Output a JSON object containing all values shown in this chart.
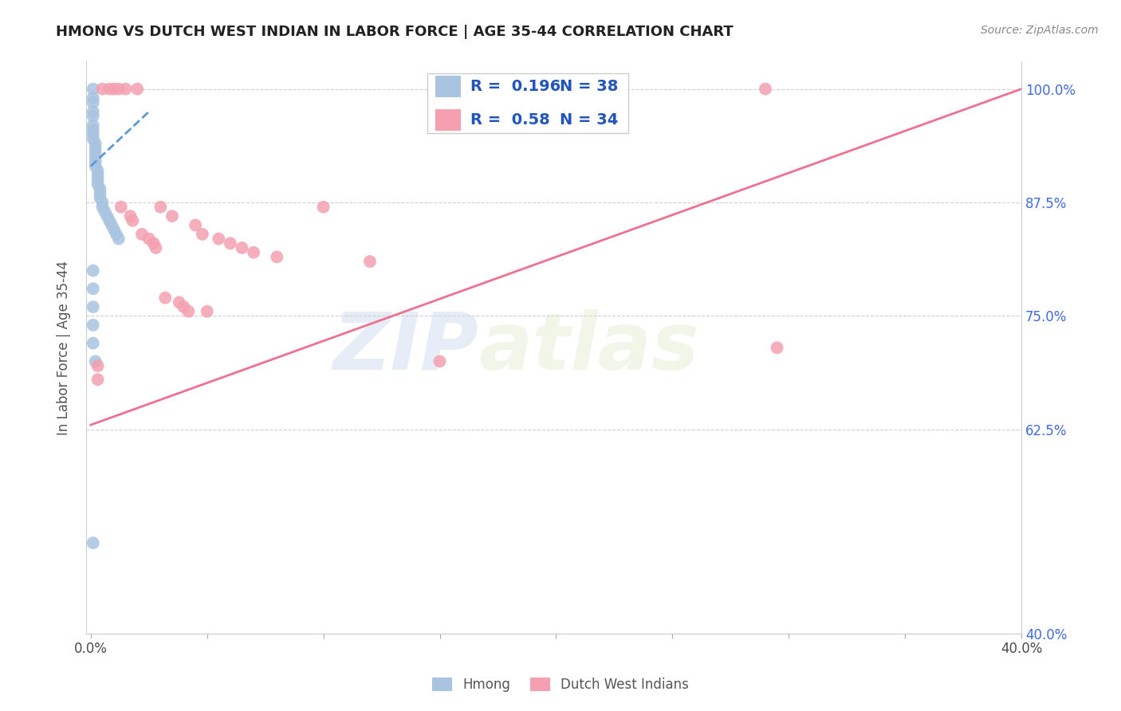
{
  "title": "HMONG VS DUTCH WEST INDIAN IN LABOR FORCE | AGE 35-44 CORRELATION CHART",
  "source": "Source: ZipAtlas.com",
  "ylabel": "In Labor Force | Age 35-44",
  "xlim": [
    -0.002,
    0.4
  ],
  "ylim": [
    0.4,
    1.03
  ],
  "xtick_positions": [
    0.0,
    0.05,
    0.1,
    0.15,
    0.2,
    0.25,
    0.3,
    0.35,
    0.4
  ],
  "xticklabels": [
    "0.0%",
    "",
    "",
    "",
    "",
    "",
    "",
    "",
    "40.0%"
  ],
  "ytick_positions": [
    0.4,
    0.625,
    0.75,
    0.875,
    1.0
  ],
  "yticklabels_right": [
    "40.0%",
    "62.5%",
    "75.0%",
    "87.5%",
    "100.0%"
  ],
  "hmong_R": 0.196,
  "hmong_N": 38,
  "dutch_R": 0.58,
  "dutch_N": 34,
  "hmong_color": "#a8c4e0",
  "dutch_color": "#f4a0b0",
  "hmong_line_color": "#5b9bd5",
  "dutch_line_color": "#f07090",
  "background_color": "#ffffff",
  "watermark_zip": "ZIP",
  "watermark_atlas": "atlas",
  "hmong_x": [
    0.001,
    0.001,
    0.001,
    0.001,
    0.001,
    0.001,
    0.001,
    0.001,
    0.001,
    0.002,
    0.002,
    0.002,
    0.002,
    0.002,
    0.002,
    0.003,
    0.003,
    0.003,
    0.003,
    0.004,
    0.004,
    0.004,
    0.005,
    0.005,
    0.006,
    0.007,
    0.008,
    0.009,
    0.01,
    0.011,
    0.012,
    0.001,
    0.001,
    0.001,
    0.001,
    0.001,
    0.002,
    0.001
  ],
  "hmong_y": [
    1.0,
    0.99,
    0.985,
    0.975,
    0.97,
    0.96,
    0.955,
    0.95,
    0.945,
    0.94,
    0.935,
    0.93,
    0.925,
    0.92,
    0.915,
    0.91,
    0.905,
    0.9,
    0.895,
    0.89,
    0.885,
    0.88,
    0.875,
    0.87,
    0.865,
    0.86,
    0.855,
    0.85,
    0.845,
    0.84,
    0.835,
    0.8,
    0.78,
    0.76,
    0.74,
    0.72,
    0.7,
    0.5
  ],
  "dutch_x": [
    0.003,
    0.003,
    0.005,
    0.008,
    0.01,
    0.012,
    0.013,
    0.015,
    0.017,
    0.018,
    0.02,
    0.022,
    0.025,
    0.027,
    0.028,
    0.03,
    0.032,
    0.035,
    0.038,
    0.04,
    0.042,
    0.045,
    0.048,
    0.05,
    0.055,
    0.06,
    0.065,
    0.07,
    0.08,
    0.1,
    0.12,
    0.15,
    0.29,
    0.295
  ],
  "dutch_y": [
    0.695,
    0.68,
    1.0,
    1.0,
    1.0,
    1.0,
    0.87,
    1.0,
    0.86,
    0.855,
    1.0,
    0.84,
    0.835,
    0.83,
    0.825,
    0.87,
    0.77,
    0.86,
    0.765,
    0.76,
    0.755,
    0.85,
    0.84,
    0.755,
    0.835,
    0.83,
    0.825,
    0.82,
    0.815,
    0.87,
    0.81,
    0.7,
    1.0,
    0.715
  ],
  "hmong_line_x": [
    0.0,
    0.025
  ],
  "hmong_line_y": [
    0.915,
    0.975
  ],
  "dutch_line_x": [
    0.0,
    0.4
  ],
  "dutch_line_y": [
    0.63,
    1.0
  ]
}
